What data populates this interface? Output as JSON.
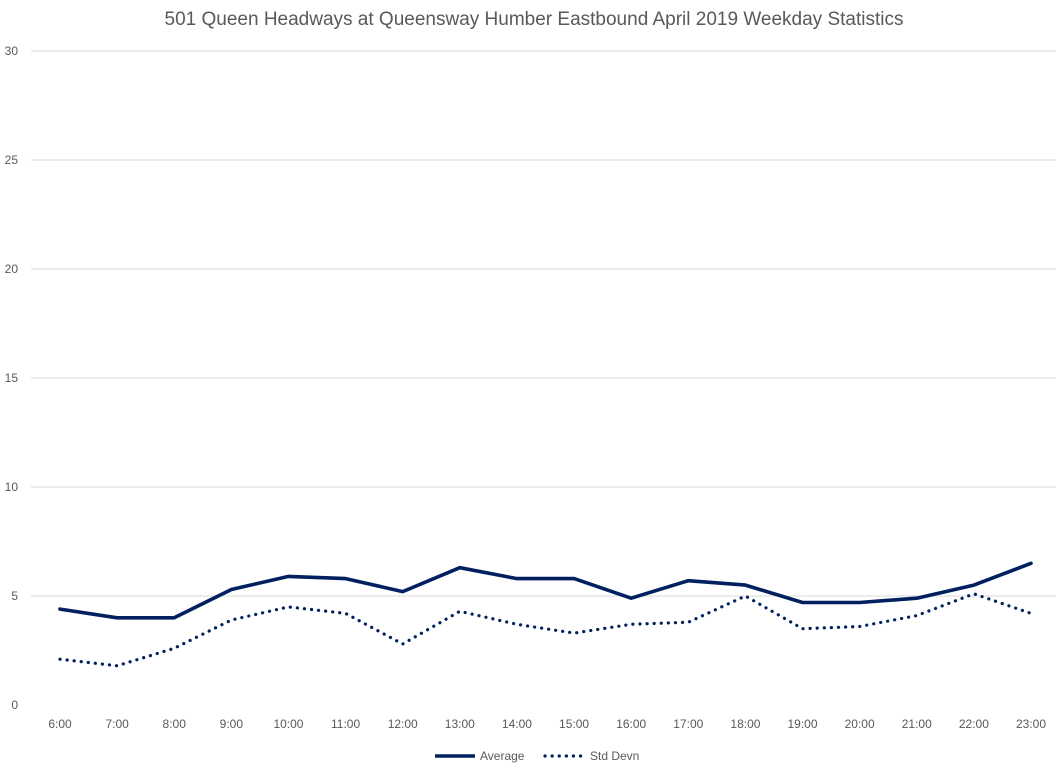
{
  "chart_data": {
    "type": "line",
    "title": "501 Queen Headways at Queensway Humber Eastbound April 2019 Weekday Statistics",
    "xlabel": "",
    "ylabel": "",
    "categories": [
      "6:00",
      "7:00",
      "8:00",
      "9:00",
      "10:00",
      "11:00",
      "12:00",
      "13:00",
      "14:00",
      "15:00",
      "16:00",
      "17:00",
      "18:00",
      "19:00",
      "20:00",
      "21:00",
      "22:00",
      "23:00"
    ],
    "ylim": [
      0,
      30
    ],
    "yticks": [
      "0",
      "5",
      "10",
      "15",
      "20",
      "25",
      "30"
    ],
    "grid": true,
    "legend_position": "bottom",
    "series": [
      {
        "name": "Average",
        "style": "solid",
        "color": "#002060",
        "values": [
          4.4,
          4.0,
          4.0,
          5.3,
          5.9,
          5.8,
          5.2,
          6.3,
          5.8,
          5.8,
          4.9,
          5.7,
          5.5,
          4.7,
          4.7,
          4.9,
          5.5,
          6.5
        ]
      },
      {
        "name": "Std Devn",
        "style": "dotted",
        "color": "#002060",
        "values": [
          2.1,
          1.8,
          2.6,
          3.9,
          4.5,
          4.2,
          2.8,
          4.3,
          3.7,
          3.3,
          3.7,
          3.8,
          5.0,
          3.5,
          3.6,
          4.1,
          5.1,
          4.2
        ]
      }
    ]
  }
}
